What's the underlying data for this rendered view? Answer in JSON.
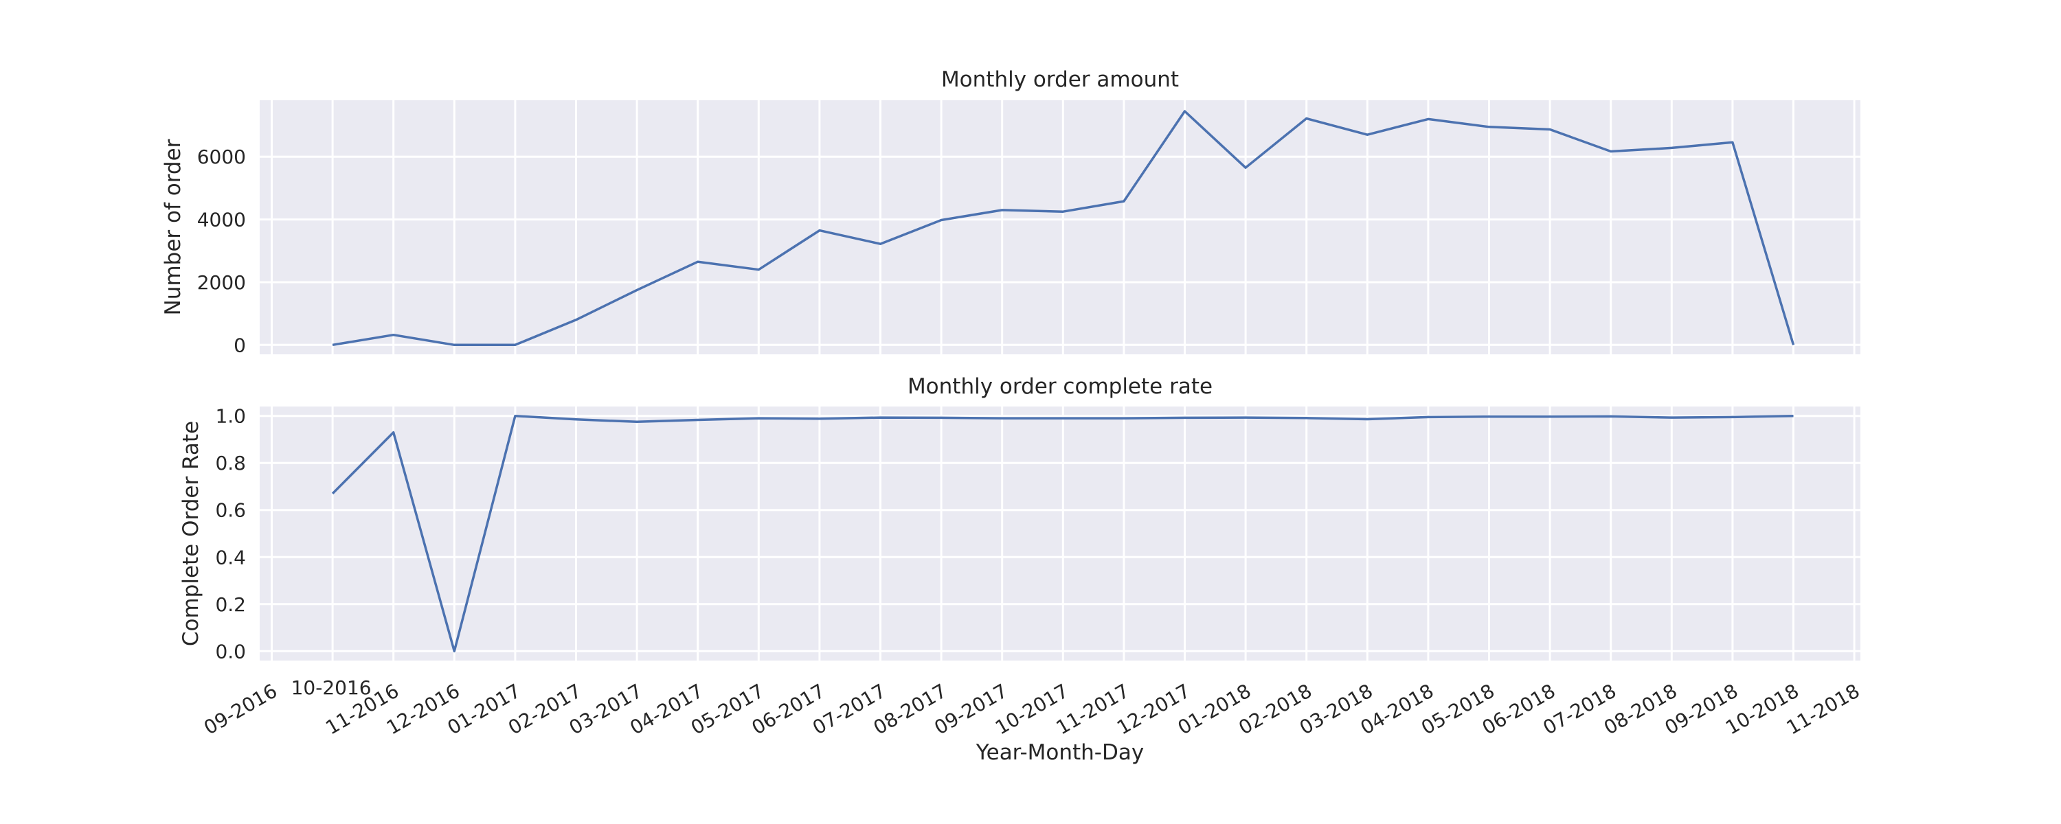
{
  "chart_data": [
    {
      "type": "line",
      "title": "Monthly order amount",
      "ylabel": "Number of order",
      "xlabel": "",
      "grid": true,
      "ylim": [
        -300,
        7800
      ],
      "yticks": [
        0,
        2000,
        4000,
        6000
      ],
      "ytick_labels": [
        "0",
        "2000",
        "4000",
        "6000"
      ],
      "x": [
        "10-2016",
        "11-2016",
        "12-2016",
        "01-2017",
        "02-2017",
        "03-2017",
        "04-2017",
        "05-2017",
        "06-2017",
        "07-2017",
        "08-2017",
        "09-2017",
        "10-2017",
        "11-2017",
        "12-2017",
        "01-2018",
        "02-2018",
        "03-2018",
        "04-2018",
        "05-2018",
        "06-2018",
        "07-2018",
        "08-2018",
        "09-2018",
        "10-2018"
      ],
      "series": [
        {
          "values": [
            0,
            320,
            0,
            0,
            800,
            1750,
            2650,
            2400,
            3650,
            3220,
            3980,
            4300,
            4250,
            4580,
            7450,
            5650,
            7220,
            6700,
            7200,
            6950,
            6870,
            6170,
            6280,
            6460,
            0
          ]
        }
      ]
    },
    {
      "type": "line",
      "title": "Monthly order complete rate",
      "ylabel": "Complete Order Rate",
      "xlabel": "Year-Month-Day",
      "grid": true,
      "ylim": [
        -0.04,
        1.04
      ],
      "yticks": [
        0.0,
        0.2,
        0.4,
        0.6,
        0.8,
        1.0
      ],
      "ytick_labels": [
        "0.0",
        "0.2",
        "0.4",
        "0.6",
        "0.8",
        "1.0"
      ],
      "x": [
        "10-2016",
        "11-2016",
        "12-2016",
        "01-2017",
        "02-2017",
        "03-2017",
        "04-2017",
        "05-2017",
        "06-2017",
        "07-2017",
        "08-2017",
        "09-2017",
        "10-2017",
        "11-2017",
        "12-2017",
        "01-2018",
        "02-2018",
        "03-2018",
        "04-2018",
        "05-2018",
        "06-2018",
        "07-2018",
        "08-2018",
        "09-2018",
        "10-2018"
      ],
      "xtick_labels": [
        "09-2016",
        "10-2016",
        "11-2016",
        "12-2016",
        "01-2017",
        "02-2017",
        "03-2017",
        "04-2017",
        "05-2017",
        "06-2017",
        "07-2017",
        "08-2017",
        "09-2017",
        "10-2017",
        "11-2017",
        "12-2017",
        "01-2018",
        "02-2018",
        "03-2018",
        "04-2018",
        "05-2018",
        "06-2018",
        "07-2018",
        "08-2018",
        "09-2018",
        "10-2018",
        "11-2018"
      ],
      "series": [
        {
          "values": [
            0.67,
            0.93,
            0.0,
            1.0,
            0.985,
            0.975,
            0.983,
            0.99,
            0.988,
            0.993,
            0.992,
            0.99,
            0.99,
            0.99,
            0.992,
            0.993,
            0.991,
            0.986,
            0.995,
            0.997,
            0.997,
            0.998,
            0.993,
            0.995,
            1.0
          ]
        }
      ]
    }
  ]
}
